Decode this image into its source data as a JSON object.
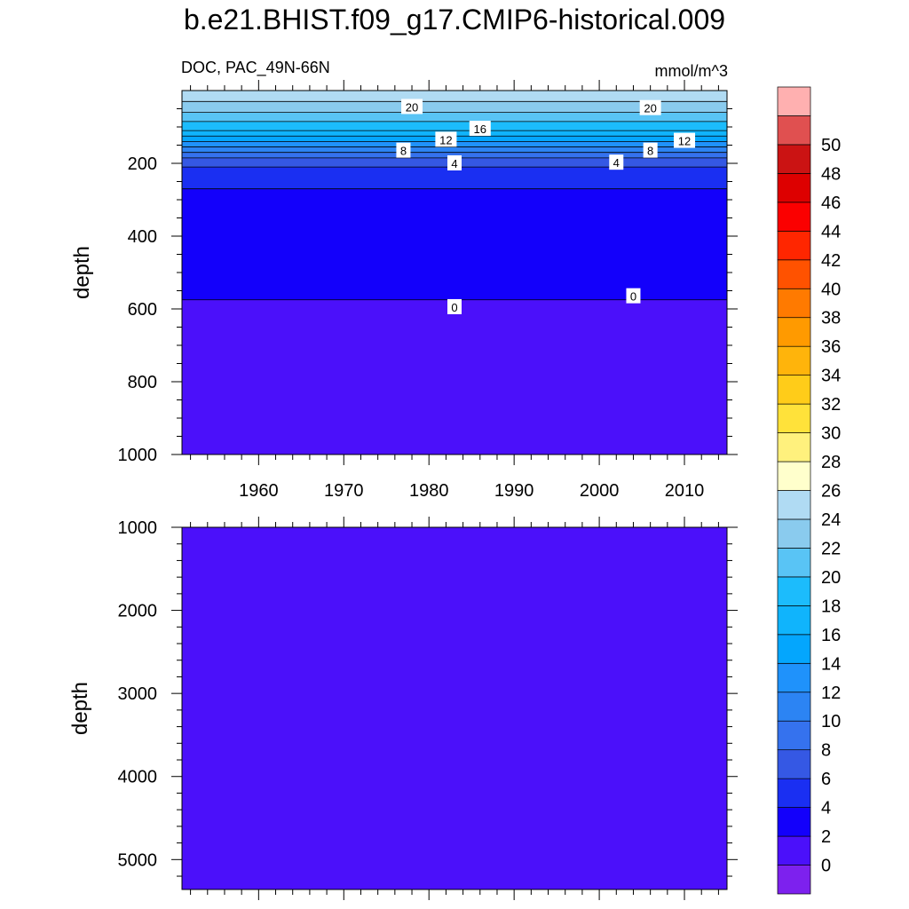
{
  "chart_data": {
    "type": "heatmap",
    "title": "b.e21.BHIST.f09_g17.CMIP6-historical.009",
    "left_label": "DOC, PAC_49N-66N",
    "right_label": "mmol/m^3",
    "ylabel": "depth",
    "x_range": [
      1951,
      2015
    ],
    "x_ticks": [
      "1960",
      "1970",
      "1980",
      "1990",
      "2000",
      "2010"
    ],
    "x_tick_values": [
      1960,
      1970,
      1980,
      1990,
      2000,
      2010
    ],
    "top_panel": {
      "ylim": [
        0,
        1000
      ],
      "y_ticks": [
        "200",
        "400",
        "600",
        "800",
        "1000"
      ],
      "y_tick_values": [
        200,
        400,
        600,
        800,
        1000
      ],
      "band_depths": [
        {
          "level": 22,
          "depth": 30
        },
        {
          "level": 20,
          "depth": 60
        },
        {
          "level": 18,
          "depth": 85
        },
        {
          "level": 16,
          "depth": 110
        },
        {
          "level": 14,
          "depth": 125
        },
        {
          "level": 12,
          "depth": 140
        },
        {
          "level": 10,
          "depth": 155
        },
        {
          "level": 8,
          "depth": 170
        },
        {
          "level": 6,
          "depth": 185
        },
        {
          "level": 4,
          "depth": 210
        },
        {
          "level": 2,
          "depth": 270
        },
        {
          "level": 0,
          "depth": 575
        }
      ],
      "contour_labels": [
        {
          "text": "20",
          "x": 1978,
          "depth": 45
        },
        {
          "text": "20",
          "x": 2006,
          "depth": 48
        },
        {
          "text": "16",
          "x": 1986,
          "depth": 105
        },
        {
          "text": "12",
          "x": 1982,
          "depth": 135
        },
        {
          "text": "12",
          "x": 2010,
          "depth": 138
        },
        {
          "text": "8",
          "x": 1977,
          "depth": 165
        },
        {
          "text": "8",
          "x": 2006,
          "depth": 165
        },
        {
          "text": "4",
          "x": 1983,
          "depth": 200
        },
        {
          "text": "4",
          "x": 2002,
          "depth": 198
        },
        {
          "text": "0",
          "x": 1983,
          "depth": 595
        },
        {
          "text": "0",
          "x": 2004,
          "depth": 565
        }
      ]
    },
    "bottom_panel": {
      "ylim": [
        1000,
        5360
      ],
      "y_ticks": [
        "1000",
        "2000",
        "3000",
        "4000",
        "5000"
      ],
      "y_tick_values": [
        1000,
        2000,
        3000,
        4000,
        5000
      ],
      "level": -1
    },
    "colorbar": {
      "labels": [
        "0",
        "2",
        "4",
        "6",
        "8",
        "10",
        "12",
        "14",
        "16",
        "18",
        "20",
        "22",
        "24",
        "26",
        "28",
        "30",
        "32",
        "34",
        "36",
        "38",
        "40",
        "42",
        "44",
        "46",
        "48",
        "50"
      ],
      "colors": [
        "#7d21ee",
        "#4b10fa",
        "#1300fb",
        "#1a2ff2",
        "#3558e4",
        "#3572ee",
        "#2c84f3",
        "#1f92fb",
        "#04a6fd",
        "#10b4fc",
        "#1cbcfc",
        "#59c4f5",
        "#8acbee",
        "#b0dbf3",
        "#ffffcc",
        "#fff17d",
        "#ffe23a",
        "#ffcc19",
        "#ffb40b",
        "#ff9a00",
        "#ff7a00",
        "#ff5200",
        "#ff2600",
        "#fb0000",
        "#dd0000",
        "#cb1313",
        "#e05050",
        "#ffb0b0"
      ]
    }
  }
}
